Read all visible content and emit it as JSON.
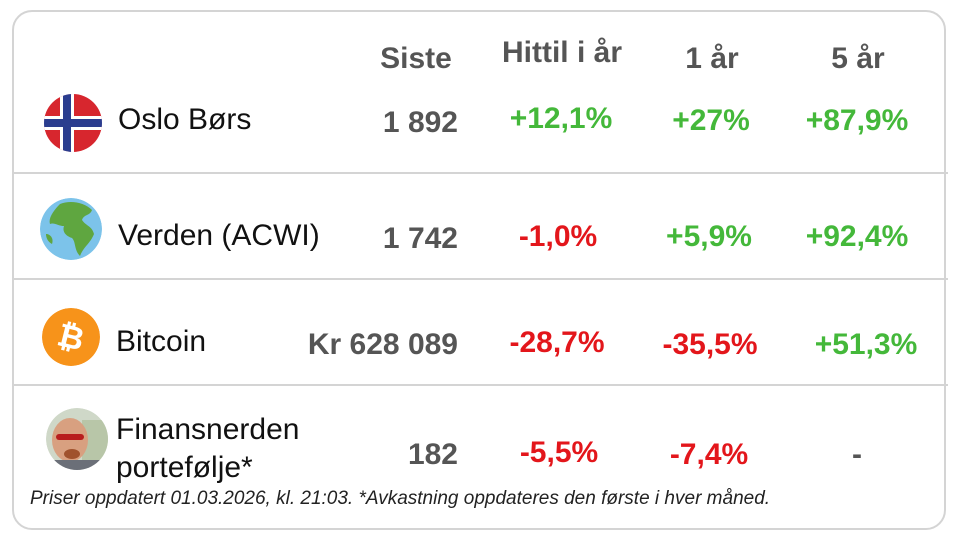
{
  "headers": {
    "last": "Siste",
    "ytd": "Hittil i år",
    "one_year": "1 år",
    "five_year": "5 år"
  },
  "colors": {
    "positive": "#44b83a",
    "negative": "#e3161b",
    "neutral": "#555555"
  },
  "rows": [
    {
      "icon": "norway-flag-icon",
      "name": "Oslo Børs",
      "last": "1 892",
      "ytd": "+12,1%",
      "one_year": "+27%",
      "five_year": "+87,9%",
      "ytd_sign": "positive",
      "one_year_sign": "positive",
      "five_year_sign": "positive"
    },
    {
      "icon": "globe-icon",
      "name": "Verden (ACWI)",
      "last": "1 742",
      "ytd": "-1,0%",
      "one_year": "+5,9%",
      "five_year": "+92,4%",
      "ytd_sign": "negative",
      "one_year_sign": "positive",
      "five_year_sign": "positive"
    },
    {
      "icon": "bitcoin-icon",
      "name": "Bitcoin",
      "last": "Kr 628 089",
      "ytd": "-28,7%",
      "one_year": "-35,5%",
      "five_year": "+51,3%",
      "ytd_sign": "negative",
      "one_year_sign": "negative",
      "five_year_sign": "positive"
    },
    {
      "icon": "avatar-icon",
      "name_line1": "Finansnerden",
      "name_line2": "portefølje*",
      "last": "182",
      "ytd": "-5,5%",
      "one_year": "-7,4%",
      "five_year": "-",
      "ytd_sign": "negative",
      "one_year_sign": "negative",
      "five_year_sign": "neutral"
    }
  ],
  "footnote": "Priser oppdatert 01.03.2026, kl. 21:03. *Avkastning oppdateres den første i hver måned."
}
